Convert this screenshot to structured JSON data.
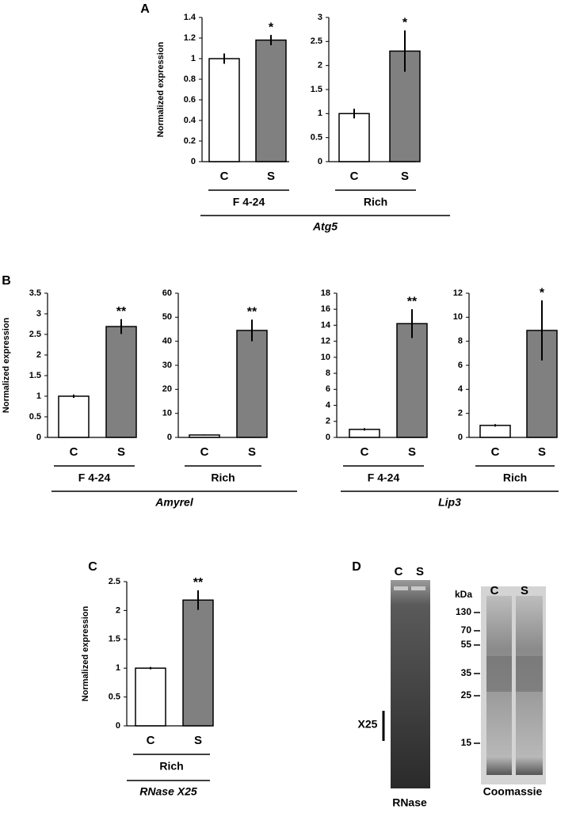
{
  "panel_labels": [
    "A",
    "B",
    "C",
    "D"
  ],
  "gene_labels": [
    "Atg5",
    "Amyrel",
    "Lip3",
    "RNase X25"
  ],
  "chart_data": [
    {
      "type": "bar",
      "ylabel": "Normalized expression",
      "group": "F 4-24",
      "categories": [
        "C",
        "S"
      ],
      "values": [
        1.0,
        1.18
      ],
      "errors": [
        0.05,
        0.05
      ],
      "colors": [
        "#ffffff",
        "#808080"
      ],
      "annotation": "*",
      "ylim": [
        0,
        1.4
      ],
      "yticks": [
        0,
        0.2,
        0.4,
        0.6,
        0.8,
        1,
        1.2,
        1.4
      ]
    },
    {
      "type": "bar",
      "group": "Rich",
      "categories": [
        "C",
        "S"
      ],
      "values": [
        1.0,
        2.3
      ],
      "errors": [
        0.1,
        0.43
      ],
      "colors": [
        "#ffffff",
        "#808080"
      ],
      "annotation": "*",
      "ylim": [
        0,
        3
      ],
      "yticks": [
        0,
        0.5,
        1,
        1.5,
        2,
        2.5,
        3
      ]
    },
    {
      "type": "bar",
      "ylabel": "Normalized expression",
      "group": "F 4-24",
      "categories": [
        "C",
        "S"
      ],
      "values": [
        1.0,
        2.69
      ],
      "errors": [
        0.04,
        0.18
      ],
      "colors": [
        "#ffffff",
        "#808080"
      ],
      "annotation": "**",
      "ylim": [
        0,
        3.5
      ],
      "yticks": [
        0,
        0.5,
        1,
        1.5,
        2,
        2.5,
        3,
        3.5
      ]
    },
    {
      "type": "bar",
      "group": "Rich",
      "categories": [
        "C",
        "S"
      ],
      "values": [
        1,
        44.5
      ],
      "errors": [
        0.2,
        4.5
      ],
      "colors": [
        "#ffffff",
        "#808080"
      ],
      "annotation": "**",
      "ylim": [
        0,
        60
      ],
      "yticks": [
        0,
        10,
        20,
        30,
        40,
        50,
        60
      ]
    },
    {
      "type": "bar",
      "group": "F 4-24",
      "categories": [
        "C",
        "S"
      ],
      "values": [
        1.0,
        14.2
      ],
      "errors": [
        0.15,
        1.8
      ],
      "colors": [
        "#ffffff",
        "#808080"
      ],
      "annotation": "**",
      "ylim": [
        0,
        18
      ],
      "yticks": [
        0,
        2,
        4,
        6,
        8,
        10,
        12,
        14,
        16,
        18
      ]
    },
    {
      "type": "bar",
      "group": "Rich",
      "categories": [
        "C",
        "S"
      ],
      "values": [
        1.0,
        8.9
      ],
      "errors": [
        0.1,
        2.5
      ],
      "colors": [
        "#ffffff",
        "#808080"
      ],
      "annotation": "*",
      "ylim": [
        0,
        12
      ],
      "yticks": [
        0,
        2,
        4,
        6,
        8,
        10,
        12
      ]
    },
    {
      "type": "bar",
      "ylabel": "Normalized expression",
      "group": "Rich",
      "categories": [
        "C",
        "S"
      ],
      "values": [
        1.0,
        2.18
      ],
      "errors": [
        0.02,
        0.17
      ],
      "colors": [
        "#ffffff",
        "#808080"
      ],
      "annotation": "**",
      "ylim": [
        0,
        2.5
      ],
      "yticks": [
        0,
        0.5,
        1,
        1.5,
        2,
        2.5
      ]
    }
  ],
  "gels": [
    {
      "lanes": [
        "C",
        "S"
      ],
      "band_label": "X25",
      "caption": "RNase"
    },
    {
      "unit": "kDa",
      "lanes": [
        "C",
        "S"
      ],
      "markers": [
        "130",
        "70",
        "55",
        "35",
        "25",
        "15"
      ],
      "caption": "Coomassie"
    }
  ]
}
